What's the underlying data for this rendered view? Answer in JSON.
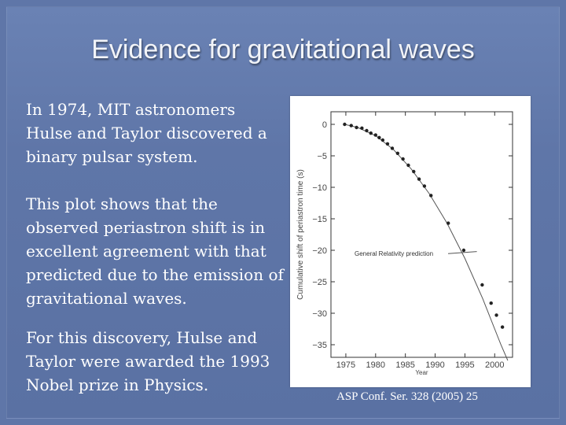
{
  "slide": {
    "title": "Evidence for gravitational waves",
    "paragraphs": [
      "In 1974, MIT astronomers Hulse and Taylor discovered a binary pulsar system.",
      "This plot shows that the observed periastron shift is in excellent agreement with that predicted due to the emission of gravitational waves.",
      "For this discovery, Hulse and Taylor were awarded the 1993 Nobel prize in Physics."
    ],
    "citation": "ASP Conf. Ser. 328 (2005) 25"
  },
  "chart_data": {
    "type": "scatter",
    "xlabel": "Year",
    "ylabel": "Cumulative shift of periastron time (s)",
    "xlim": [
      1972.5,
      2003
    ],
    "ylim": [
      -37,
      2
    ],
    "xticks": [
      1975,
      1980,
      1985,
      1990,
      1995,
      2000
    ],
    "yticks": [
      0,
      -5,
      -10,
      -15,
      -20,
      -25,
      -30,
      -35
    ],
    "annotation": "General Relativity prediction",
    "annotation_target": {
      "x": 1997,
      "y": -20.2
    },
    "series": [
      {
        "kind": "points",
        "x": [
          1974.8,
          1975.9,
          1976.8,
          1977.7,
          1978.5,
          1979.2,
          1980.0,
          1980.6,
          1981.2,
          1982.0,
          1982.8,
          1983.7,
          1984.6,
          1985.5,
          1986.4,
          1987.3,
          1988.2,
          1989.3,
          1992.2,
          1994.8,
          1997.9,
          1999.4,
          2000.3,
          2001.3
        ],
        "y": [
          0.0,
          -0.2,
          -0.5,
          -0.6,
          -1.0,
          -1.4,
          -1.7,
          -2.1,
          -2.5,
          -3.1,
          -3.8,
          -4.6,
          -5.5,
          -6.5,
          -7.5,
          -8.7,
          -9.8,
          -11.3,
          -15.7,
          -20.0,
          -25.5,
          -28.4,
          -30.3,
          -32.2
        ]
      },
      {
        "kind": "prediction-curve",
        "x": [
          1974.8,
          1977,
          1980,
          1983,
          1986,
          1989,
          1992,
          1995,
          1998,
          2001,
          2002.2
        ],
        "y": [
          0.0,
          -0.5,
          -1.8,
          -4.0,
          -7.1,
          -11.0,
          -15.7,
          -21.3,
          -27.7,
          -34.9,
          -37.5
        ]
      }
    ]
  }
}
